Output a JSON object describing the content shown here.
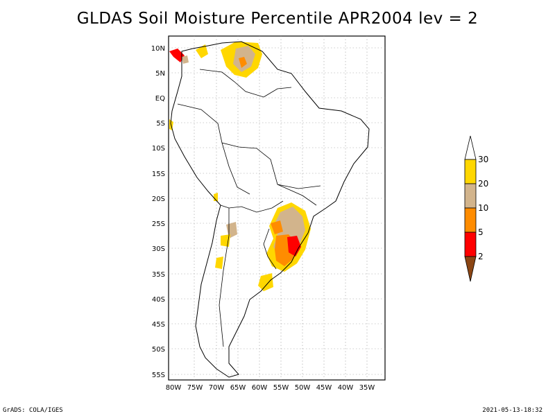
{
  "title": "GLDAS Soil Moisture Percentile APR2004 lev = 2",
  "lat_labels": [
    "10N",
    "5N",
    "EQ",
    "5S",
    "10S",
    "15S",
    "20S",
    "25S",
    "30S",
    "35S",
    "40S",
    "45S",
    "50S",
    "55S"
  ],
  "lon_labels": [
    "80W",
    "75W",
    "70W",
    "65W",
    "60W",
    "55W",
    "50W",
    "45W",
    "40W",
    "35W"
  ],
  "colorbar": {
    "levels": [
      "2",
      "5",
      "10",
      "20",
      "30"
    ],
    "colors": [
      "#8B4513",
      "#FF0000",
      "#FF8C00",
      "#D2B48C",
      "#FFD700",
      "#FFFFFF"
    ]
  },
  "footer": {
    "left": "GrADS: COLA/IGES",
    "right": "2021-05-13-18:32"
  }
}
